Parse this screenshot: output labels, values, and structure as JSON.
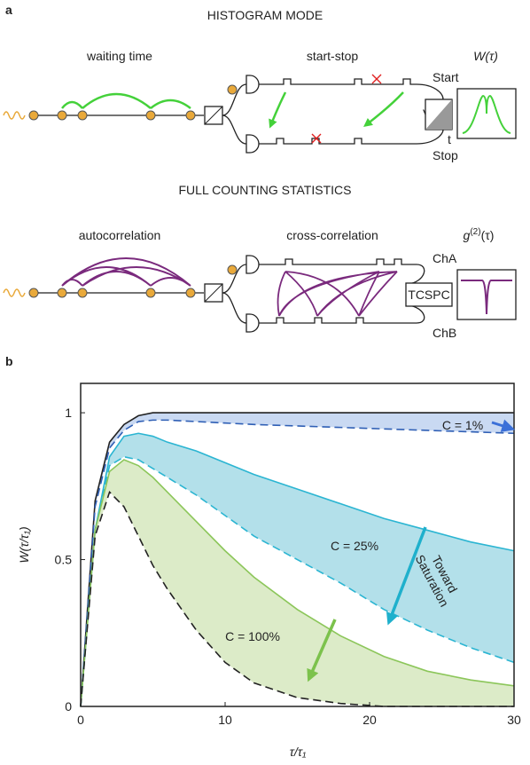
{
  "panel_a": {
    "label": "a",
    "histogram_mode": {
      "title": "HISTOGRAM MODE",
      "waiting_time": "waiting time",
      "start_stop": "start-stop",
      "output": "W(τ)",
      "start": "Start",
      "v": "V",
      "t": "t",
      "stop": "Stop"
    },
    "full_counting": {
      "title": "FULL COUNTING STATISTICS",
      "autocorrelation": "autocorrelation",
      "cross_correlation": "cross-correlation",
      "output": [
        "g",
        "(2)",
        "(τ)"
      ],
      "cha": "ChA",
      "tcspc": "TCSPC",
      "chb": "ChB"
    }
  },
  "panel_b_label": "b",
  "chart_data": {
    "type": "line",
    "xlabel": "τ/τ₁",
    "ylabel": "W(τ/τ₁)",
    "x": [
      0,
      1,
      2,
      3,
      4,
      5,
      6,
      8,
      10,
      12,
      15,
      18,
      21,
      24,
      27,
      30
    ],
    "series": [
      {
        "color": "#222222",
        "style": "solid",
        "values": [
          0,
          0.7,
          0.9,
          0.96,
          0.99,
          1,
          1,
          1,
          1,
          1,
          1,
          1,
          1,
          1,
          1,
          1
        ]
      },
      {
        "color": "#2f5fb5",
        "style": "dashed",
        "fill": "#c9d9f2",
        "values": [
          0,
          0.68,
          0.88,
          0.94,
          0.97,
          0.975,
          0.975,
          0.97,
          0.965,
          0.96,
          0.955,
          0.95,
          0.945,
          0.94,
          0.935,
          0.93
        ]
      },
      {
        "color": "#2bb5d2",
        "style": "solid",
        "values": [
          0,
          0.6,
          0.85,
          0.92,
          0.93,
          0.92,
          0.9,
          0.87,
          0.83,
          0.79,
          0.74,
          0.69,
          0.64,
          0.6,
          0.56,
          0.53
        ]
      },
      {
        "color": "#2bb5d2",
        "style": "dashed",
        "fill": "#b3e0ea",
        "values": [
          0,
          0.6,
          0.82,
          0.85,
          0.84,
          0.81,
          0.78,
          0.72,
          0.65,
          0.58,
          0.5,
          0.42,
          0.33,
          0.26,
          0.2,
          0.15
        ]
      },
      {
        "color": "#8cc65a",
        "style": "solid",
        "values": [
          0,
          0.6,
          0.8,
          0.84,
          0.82,
          0.78,
          0.73,
          0.63,
          0.53,
          0.44,
          0.33,
          0.24,
          0.17,
          0.12,
          0.09,
          0.07
        ]
      },
      {
        "color": "#222222",
        "style": "dashed",
        "fill": "#dcebc8",
        "values": [
          0,
          0.58,
          0.73,
          0.68,
          0.58,
          0.48,
          0.4,
          0.26,
          0.15,
          0.08,
          0.03,
          0.01,
          0,
          0,
          0,
          0
        ]
      }
    ],
    "annotations": [
      {
        "text": "C = 1%"
      },
      {
        "text": "C = 25%"
      },
      {
        "text": "C = 100%"
      },
      {
        "lines": [
          "Toward",
          "Saturation"
        ]
      }
    ],
    "xlim": [
      0,
      30
    ],
    "xticks": [
      0,
      10,
      20,
      30
    ],
    "ylim": [
      0,
      1.1
    ],
    "yticks": [
      0,
      0.5,
      1
    ]
  }
}
